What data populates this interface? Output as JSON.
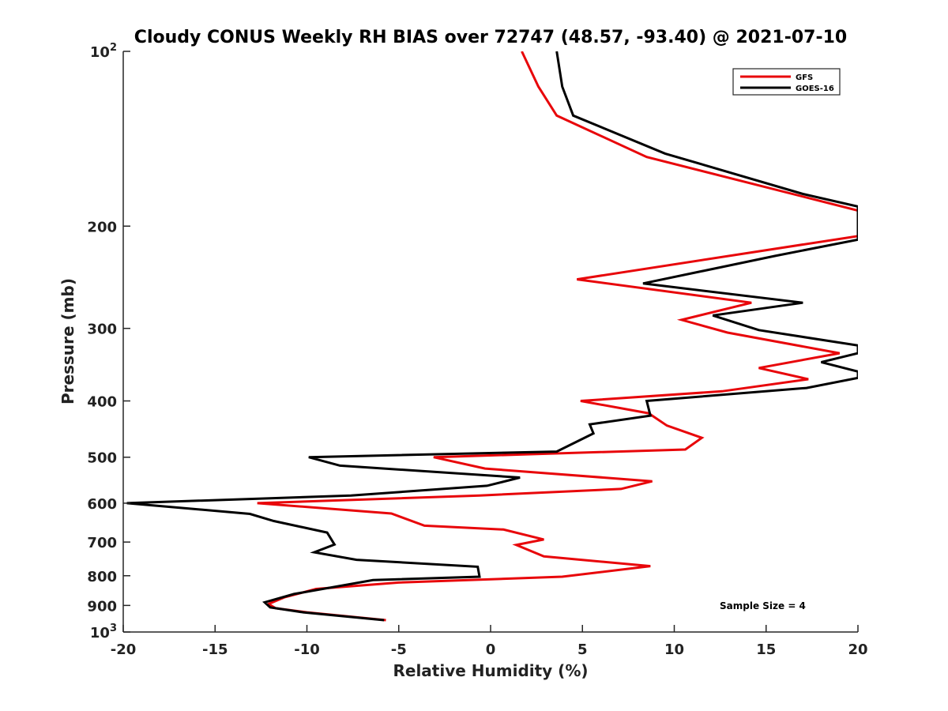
{
  "chart_data": {
    "type": "line",
    "title": "Cloudy CONUS Weekly RH BIAS over 72747 (48.57, -93.40) @ 2021-07-10",
    "xlabel": "Relative Humidity (%)",
    "ylabel": "Pressure (mb)",
    "xlim": [
      -20,
      20
    ],
    "ylim": [
      100,
      1000
    ],
    "yscale": "log",
    "y_reversed": true,
    "grid": false,
    "legend_position": "top-right",
    "x_ticks": [
      {
        "value": -20,
        "label": "-20"
      },
      {
        "value": -15,
        "label": "-15"
      },
      {
        "value": -10,
        "label": "-10"
      },
      {
        "value": -5,
        "label": "-5"
      },
      {
        "value": 0,
        "label": "0"
      },
      {
        "value": 5,
        "label": "5"
      },
      {
        "value": 10,
        "label": "10"
      },
      {
        "value": 15,
        "label": "15"
      },
      {
        "value": 20,
        "label": "20"
      }
    ],
    "y_ticks": [
      {
        "value": 100,
        "label": "10",
        "sup": "2"
      },
      {
        "value": 200,
        "label": "200"
      },
      {
        "value": 300,
        "label": "300"
      },
      {
        "value": 400,
        "label": "400"
      },
      {
        "value": 500,
        "label": "500"
      },
      {
        "value": 600,
        "label": "600"
      },
      {
        "value": 700,
        "label": "700"
      },
      {
        "value": 800,
        "label": "800"
      },
      {
        "value": 900,
        "label": "900"
      },
      {
        "value": 1000,
        "label": "10",
        "sup": "3"
      }
    ],
    "series": [
      {
        "name": "GFS",
        "color": "#e8060a",
        "points": [
          [
            1.7,
            100
          ],
          [
            2.6,
            115
          ],
          [
            3.6,
            129
          ],
          [
            8.5,
            152
          ],
          [
            20.0,
            188
          ],
          [
            20.0,
            208
          ],
          [
            4.7,
            247
          ],
          [
            14.2,
            271
          ],
          [
            10.4,
            290
          ],
          [
            12.9,
            305
          ],
          [
            19.0,
            331
          ],
          [
            14.6,
            351
          ],
          [
            17.3,
            367
          ],
          [
            12.6,
            385
          ],
          [
            4.9,
            400
          ],
          [
            8.6,
            420
          ],
          [
            9.6,
            441
          ],
          [
            11.5,
            463
          ],
          [
            10.6,
            485
          ],
          [
            -3.1,
            500
          ],
          [
            -0.3,
            523
          ],
          [
            8.8,
            550
          ],
          [
            7.1,
            567
          ],
          [
            -0.6,
            582
          ],
          [
            -12.7,
            600
          ],
          [
            -5.4,
            625
          ],
          [
            -3.6,
            656
          ],
          [
            0.7,
            666
          ],
          [
            2.9,
            693
          ],
          [
            1.4,
            708
          ],
          [
            2.9,
            741
          ],
          [
            8.7,
            770
          ],
          [
            3.9,
            803
          ],
          [
            -5.0,
            822
          ],
          [
            -9.5,
            843
          ],
          [
            -11.2,
            871
          ],
          [
            -12.1,
            895
          ],
          [
            -11.7,
            910
          ],
          [
            -10.0,
            925
          ],
          [
            -5.7,
            954
          ]
        ]
      },
      {
        "name": "GOES-16",
        "color": "#000000",
        "points": [
          [
            3.6,
            100
          ],
          [
            3.9,
            115
          ],
          [
            4.5,
            129
          ],
          [
            9.5,
            150
          ],
          [
            17.0,
            176
          ],
          [
            20.0,
            185
          ],
          [
            20.0,
            211
          ],
          [
            15.5,
            225
          ],
          [
            8.3,
            251
          ],
          [
            17.0,
            271
          ],
          [
            12.1,
            285
          ],
          [
            14.6,
            302
          ],
          [
            20.0,
            321
          ],
          [
            20.0,
            331
          ],
          [
            18.0,
            343
          ],
          [
            20.0,
            356
          ],
          [
            20.0,
            365
          ],
          [
            17.2,
            380
          ],
          [
            8.5,
            400
          ],
          [
            8.7,
            424
          ],
          [
            5.4,
            439
          ],
          [
            5.6,
            455
          ],
          [
            3.6,
            489
          ],
          [
            -9.9,
            500
          ],
          [
            -8.2,
            517
          ],
          [
            1.6,
            542
          ],
          [
            -0.2,
            560
          ],
          [
            -7.6,
            582
          ],
          [
            -19.8,
            600
          ],
          [
            -13.1,
            626
          ],
          [
            -11.8,
            644
          ],
          [
            -8.9,
            674
          ],
          [
            -8.5,
            707
          ],
          [
            -9.6,
            729
          ],
          [
            -7.3,
            751
          ],
          [
            -0.7,
            772
          ],
          [
            -0.6,
            803
          ],
          [
            -6.4,
            814
          ],
          [
            -10.7,
            860
          ],
          [
            -12.3,
            889
          ],
          [
            -12.0,
            907
          ],
          [
            -10.2,
            925
          ],
          [
            -5.8,
            954
          ]
        ]
      }
    ],
    "annotations": [
      {
        "text": "Sample Size = 4",
        "position": "bottom-right"
      }
    ]
  }
}
